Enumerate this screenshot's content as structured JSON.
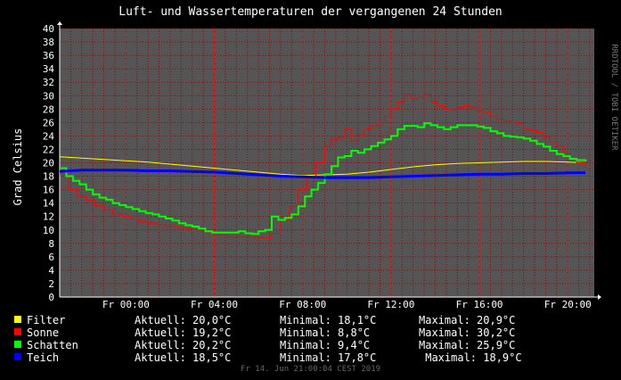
{
  "header": {
    "title": "Luft- und Wassertemperaturen der vergangenen 24 Stunden",
    "watermark": "RRDTOOL / TOBI OETIKER"
  },
  "colors": {
    "background": "#000000",
    "plot_bg": "#555555",
    "grid": "#990000",
    "text": "#ffffff",
    "Filter": "#ffff00",
    "Sonne": "#ff0000",
    "Schatten": "#00ff00",
    "Teich": "#0000ff"
  },
  "chart_data": {
    "type": "line",
    "title": "Luft- und Wassertemperaturen der vergangenen 24 Stunden",
    "ylabel": "Grad Celsius",
    "xlabel": "",
    "ylim": [
      0,
      40
    ],
    "xlim": [
      -3.0,
      21.2
    ],
    "yticks": [
      0,
      2,
      4,
      6,
      8,
      10,
      12,
      14,
      16,
      18,
      20,
      22,
      24,
      26,
      28,
      30,
      32,
      34,
      36,
      38,
      40
    ],
    "xticks": [
      {
        "x": 0,
        "label": "Fr 00:00"
      },
      {
        "x": 4,
        "label": "Fr 04:00"
      },
      {
        "x": 8,
        "label": "Fr 08:00"
      },
      {
        "x": 12,
        "label": "Fr 12:00"
      },
      {
        "x": 16,
        "label": "Fr 16:00"
      },
      {
        "x": 20,
        "label": "Fr 20:00"
      }
    ],
    "grid": true,
    "legend": "bottom",
    "series": [
      {
        "name": "Filter",
        "color": "#ffff00",
        "width": 1,
        "x": [
          -3.0,
          -2.0,
          -1.0,
          0.0,
          1.0,
          2.0,
          3.0,
          4.0,
          5.0,
          6.0,
          7.0,
          8.0,
          9.0,
          10.0,
          11.0,
          12.0,
          13.0,
          14.0,
          15.0,
          16.0,
          17.0,
          18.0,
          19.0,
          20.0,
          20.8
        ],
        "y": [
          20.9,
          20.7,
          20.5,
          20.3,
          20.1,
          19.8,
          19.5,
          19.2,
          18.9,
          18.6,
          18.3,
          18.1,
          18.2,
          18.3,
          18.6,
          19.0,
          19.4,
          19.7,
          19.9,
          20.0,
          20.1,
          20.2,
          20.2,
          20.1,
          20.0
        ]
      },
      {
        "name": "Sonne",
        "color": "#ff0000",
        "width": 1,
        "step": true,
        "x": [
          -3.0,
          -2.6,
          -2.2,
          -1.8,
          -1.4,
          -1.0,
          -0.6,
          -0.2,
          0.2,
          0.6,
          1.0,
          1.4,
          1.8,
          2.2,
          2.6,
          3.0,
          3.4,
          3.8,
          4.2,
          4.6,
          5.0,
          5.4,
          5.8,
          6.2,
          6.6,
          7.0,
          7.4,
          7.8,
          8.2,
          8.6,
          9.0,
          9.3,
          9.6,
          9.9,
          10.2,
          10.5,
          10.8,
          11.1,
          11.4,
          11.7,
          12.0,
          12.3,
          12.6,
          12.9,
          13.2,
          13.5,
          13.8,
          14.1,
          14.4,
          14.7,
          15.0,
          15.3,
          15.6,
          15.9,
          16.2,
          16.5,
          16.8,
          17.1,
          17.4,
          17.7,
          18.0,
          18.3,
          18.6,
          18.9,
          19.2,
          19.5,
          19.8,
          20.1,
          20.4,
          20.8
        ],
        "y": [
          18.3,
          16.0,
          15.0,
          14.4,
          13.6,
          13.0,
          12.4,
          12.0,
          11.6,
          11.2,
          11.0,
          10.8,
          10.6,
          10.4,
          10.2,
          10.0,
          9.8,
          9.6,
          9.2,
          9.0,
          9.0,
          9.0,
          8.9,
          8.8,
          9.5,
          11.5,
          13.5,
          16.0,
          18.0,
          20.0,
          22.5,
          23.5,
          23.8,
          25.0,
          23.3,
          24.2,
          25.0,
          25.5,
          26.0,
          27.0,
          28.0,
          29.0,
          30.2,
          29.5,
          29.7,
          30.2,
          29.0,
          28.5,
          28.0,
          27.8,
          28.2,
          28.5,
          28.3,
          27.8,
          27.5,
          27.0,
          26.5,
          26.2,
          26.0,
          25.8,
          25.0,
          24.8,
          24.5,
          23.8,
          23.0,
          22.5,
          21.5,
          20.5,
          20.0,
          19.2
        ]
      },
      {
        "name": "Schatten",
        "color": "#00ff00",
        "width": 2,
        "step": true,
        "x": [
          -3.0,
          -2.7,
          -2.4,
          -2.1,
          -1.8,
          -1.5,
          -1.2,
          -0.9,
          -0.6,
          -0.3,
          0.0,
          0.3,
          0.6,
          0.9,
          1.2,
          1.5,
          1.8,
          2.1,
          2.4,
          2.7,
          3.0,
          3.3,
          3.6,
          3.9,
          4.2,
          4.5,
          4.8,
          5.1,
          5.4,
          5.7,
          6.0,
          6.3,
          6.6,
          6.9,
          7.2,
          7.5,
          7.8,
          8.1,
          8.4,
          8.7,
          9.0,
          9.3,
          9.6,
          9.9,
          10.2,
          10.5,
          10.8,
          11.1,
          11.4,
          11.7,
          12.0,
          12.3,
          12.6,
          12.9,
          13.2,
          13.5,
          13.8,
          14.1,
          14.4,
          14.7,
          15.0,
          15.3,
          15.6,
          15.9,
          16.2,
          16.5,
          16.8,
          17.1,
          17.4,
          17.7,
          18.0,
          18.3,
          18.6,
          18.9,
          19.2,
          19.5,
          19.8,
          20.1,
          20.4,
          20.8
        ],
        "y": [
          19.2,
          18.0,
          17.3,
          16.8,
          16.0,
          15.3,
          14.8,
          14.5,
          14.0,
          13.7,
          13.4,
          13.1,
          12.8,
          12.5,
          12.3,
          12.0,
          11.7,
          11.4,
          11.0,
          10.7,
          10.5,
          10.2,
          9.8,
          9.6,
          9.6,
          9.6,
          9.6,
          9.8,
          9.5,
          9.4,
          9.8,
          10.0,
          12.0,
          11.5,
          11.8,
          12.3,
          13.5,
          15.0,
          16.0,
          17.0,
          18.3,
          19.5,
          20.8,
          21.0,
          21.8,
          21.5,
          22.0,
          22.5,
          23.0,
          23.5,
          24.0,
          25.0,
          25.5,
          25.5,
          25.3,
          25.9,
          25.6,
          25.3,
          25.0,
          25.3,
          25.6,
          25.6,
          25.6,
          25.4,
          25.2,
          24.7,
          24.4,
          24.0,
          23.9,
          23.8,
          23.6,
          23.3,
          22.8,
          22.4,
          21.8,
          21.3,
          21.0,
          20.6,
          20.4,
          20.2
        ]
      },
      {
        "name": "Teich",
        "color": "#0000ff",
        "width": 3,
        "x": [
          -3.0,
          -2.0,
          -1.0,
          0.0,
          1.0,
          2.0,
          3.0,
          4.0,
          5.0,
          6.0,
          7.0,
          8.0,
          9.0,
          10.0,
          11.0,
          12.0,
          13.0,
          14.0,
          15.0,
          16.0,
          17.0,
          18.0,
          19.0,
          20.0,
          20.8
        ],
        "y": [
          18.7,
          18.9,
          18.9,
          18.9,
          18.8,
          18.8,
          18.7,
          18.6,
          18.4,
          18.2,
          18.0,
          17.9,
          17.8,
          17.8,
          17.8,
          17.9,
          18.0,
          18.1,
          18.2,
          18.3,
          18.3,
          18.4,
          18.4,
          18.5,
          18.5
        ]
      }
    ]
  },
  "legend": [
    {
      "name": "Filter",
      "current": "Aktuell: 20,0°C",
      "min": "Minimal: 18,1°C",
      "max": "Maximal: 20,9°C"
    },
    {
      "name": "Sonne",
      "current": "Aktuell: 19,2°C",
      "min": "Minimal: 8,8°C",
      "max": "Maximal: 30,2°C"
    },
    {
      "name": "Schatten",
      "current": "Aktuell: 20,2°C",
      "min": "Minimal: 9,4°C",
      "max": "Maximal: 25,9°C"
    },
    {
      "name": "Teich",
      "current": "Aktuell: 18,5°C",
      "min": "Minimal: 17,8°C",
      "max": " Maximal: 18,9°C"
    }
  ],
  "footer": "Fr 14. Jun 21:00:04 CEST 2019"
}
